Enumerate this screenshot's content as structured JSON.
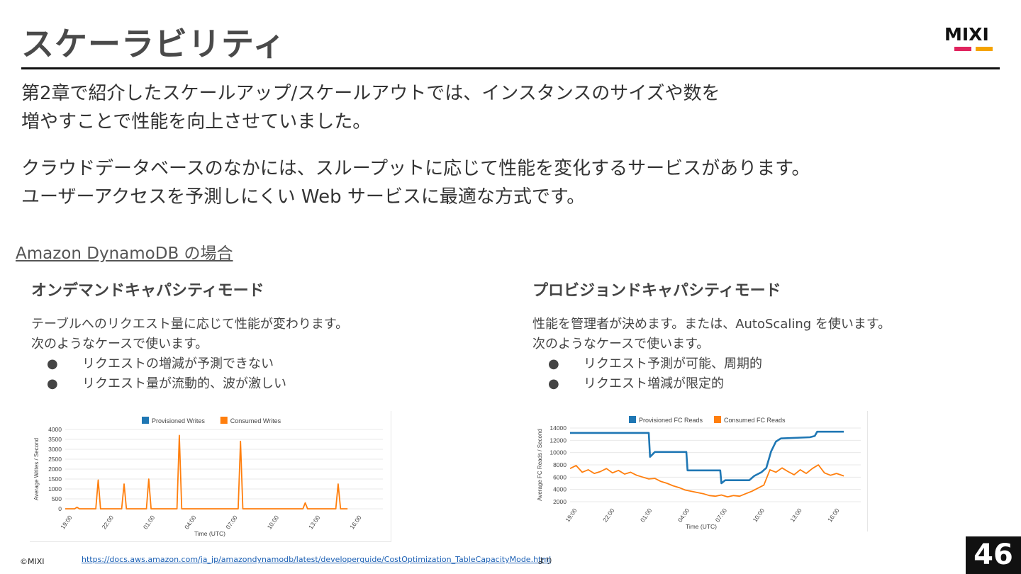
{
  "slide": {
    "title": "スケーラビリティ",
    "page_number": "46",
    "copyright": "©MIXI",
    "footer_url": "https://docs.aws.amazon.com/ja_jp/amazondynamodb/latest/developerguide/CostOptimization_TableCapacityMode.html",
    "footer_suffix": "より",
    "logo_text": "MIXI",
    "colors": {
      "logo_pink": "#e0245e",
      "logo_orange": "#f5a300",
      "chart_blue": "#1f77b4",
      "chart_orange": "#ff7f0e"
    }
  },
  "intro": {
    "p1_line1": "第2章で紹介したスケールアップ/スケールアウトでは、インスタンスのサイズや数を",
    "p1_line2": "増やすことで性能を向上させていました。",
    "p2_line1": "クラウドデータベースのなかには、スループットに応じて性能を変化するサービスがあります。",
    "p2_line2": "ユーザーアクセスを予測しにくい Web サービスに最適な方式です。"
  },
  "section_link": "Amazon DynamoDB の場合",
  "left": {
    "title": "オンデマンドキャパシティモード",
    "line1": "テーブルへのリクエスト量に応じて性能が変わります。",
    "line2": "次のようなケースで使います。",
    "bullet_symbol": "●",
    "bullets": [
      "リクエストの増減が予測できない",
      "リクエスト量が流動的、波が激しい"
    ]
  },
  "right": {
    "title": "プロビジョンドキャパシティモード",
    "line1": "性能を管理者が決めます。または、AutoScaling を使います。",
    "line2": "次のようなケースで使います。",
    "bullet_symbol": "●",
    "bullets": [
      "リクエスト予測が可能、周期的",
      "リクエスト増減が限定的"
    ]
  },
  "chart_data": [
    {
      "type": "line",
      "legend_position": "top",
      "grid": true,
      "xlabel": "Time (UTC)",
      "ylabel": "Average Writes / Second",
      "ylim": [
        0,
        4000
      ],
      "y_ticks": [
        "0",
        "500",
        "1000",
        "1500",
        "2000",
        "2500",
        "3000",
        "3500",
        "4000"
      ],
      "x_ticks": [
        "19:00",
        "22:00",
        "01:00",
        "04:00",
        "07:00",
        "10:00",
        "13:00",
        "16:00"
      ],
      "x_range": [
        0,
        27
      ],
      "series": [
        {
          "name": "Provisioned Writes",
          "color": "#1f77b4",
          "points": []
        },
        {
          "name": "Consumed Writes",
          "color": "#ff7f0e",
          "points": [
            [
              0,
              0
            ],
            [
              0.8,
              0
            ],
            [
              1,
              80
            ],
            [
              1.2,
              0
            ],
            [
              2.6,
              0
            ],
            [
              2.8,
              1450
            ],
            [
              3,
              0
            ],
            [
              4.8,
              0
            ],
            [
              5,
              1250
            ],
            [
              5.2,
              0
            ],
            [
              6.9,
              0
            ],
            [
              7.1,
              1500
            ],
            [
              7.3,
              0
            ],
            [
              9.5,
              0
            ],
            [
              9.7,
              3700
            ],
            [
              9.9,
              0
            ],
            [
              14.7,
              0
            ],
            [
              14.9,
              3400
            ],
            [
              15.1,
              0
            ],
            [
              20.2,
              0
            ],
            [
              20.4,
              300
            ],
            [
              20.6,
              0
            ],
            [
              23,
              0
            ],
            [
              23.2,
              1250
            ],
            [
              23.4,
              0
            ],
            [
              24,
              0
            ]
          ]
        }
      ]
    },
    {
      "type": "line",
      "legend_position": "top",
      "grid": true,
      "xlabel": "Time (UTC)",
      "ylabel": "Average FC Reads / Second",
      "ylim": [
        2000,
        14000
      ],
      "y_ticks": [
        "2000",
        "4000",
        "6000",
        "8000",
        "10000",
        "12000",
        "14000"
      ],
      "x_ticks": [
        "19:00",
        "22:00",
        "01:00",
        "04:00",
        "07:00",
        "10:00",
        "13:00",
        "16:00"
      ],
      "x_range": [
        0,
        24
      ],
      "series": [
        {
          "name": "Provisioned FC Reads",
          "color": "#1f77b4",
          "points": [
            [
              0,
              13200
            ],
            [
              6.5,
              13200
            ],
            [
              6.6,
              9300
            ],
            [
              7,
              10100
            ],
            [
              9.6,
              10100
            ],
            [
              9.7,
              7100
            ],
            [
              12.4,
              7100
            ],
            [
              12.5,
              5000
            ],
            [
              12.8,
              5500
            ],
            [
              14.8,
              5500
            ],
            [
              15.2,
              6200
            ],
            [
              15.8,
              6800
            ],
            [
              16.2,
              7500
            ],
            [
              16.6,
              10200
            ],
            [
              17,
              11800
            ],
            [
              17.4,
              12300
            ],
            [
              19.8,
              12500
            ],
            [
              20.2,
              12700
            ],
            [
              20.4,
              13400
            ],
            [
              22.6,
              13400
            ]
          ]
        },
        {
          "name": "Consumed FC Reads",
          "color": "#ff7f0e",
          "points": [
            [
              0,
              7400
            ],
            [
              0.5,
              7900
            ],
            [
              1,
              6800
            ],
            [
              1.5,
              7200
            ],
            [
              2,
              6600
            ],
            [
              2.5,
              6900
            ],
            [
              3,
              7400
            ],
            [
              3.5,
              6700
            ],
            [
              4,
              7100
            ],
            [
              4.5,
              6500
            ],
            [
              5,
              6800
            ],
            [
              5.5,
              6300
            ],
            [
              6,
              6000
            ],
            [
              6.5,
              5700
            ],
            [
              7,
              5800
            ],
            [
              7.5,
              5300
            ],
            [
              8,
              5000
            ],
            [
              8.5,
              4600
            ],
            [
              9,
              4300
            ],
            [
              9.5,
              3900
            ],
            [
              10,
              3700
            ],
            [
              10.5,
              3500
            ],
            [
              11,
              3300
            ],
            [
              11.5,
              3000
            ],
            [
              12,
              2900
            ],
            [
              12.5,
              3100
            ],
            [
              13,
              2800
            ],
            [
              13.5,
              3000
            ],
            [
              14,
              2900
            ],
            [
              14.5,
              3300
            ],
            [
              15,
              3700
            ],
            [
              15.5,
              4200
            ],
            [
              16,
              4700
            ],
            [
              16.5,
              7200
            ],
            [
              17,
              6800
            ],
            [
              17.5,
              7500
            ],
            [
              18,
              6900
            ],
            [
              18.5,
              6400
            ],
            [
              19,
              7200
            ],
            [
              19.5,
              6600
            ],
            [
              20,
              7400
            ],
            [
              20.5,
              8000
            ],
            [
              21,
              6700
            ],
            [
              21.5,
              6300
            ],
            [
              22,
              6600
            ],
            [
              22.6,
              6200
            ]
          ]
        }
      ]
    }
  ]
}
